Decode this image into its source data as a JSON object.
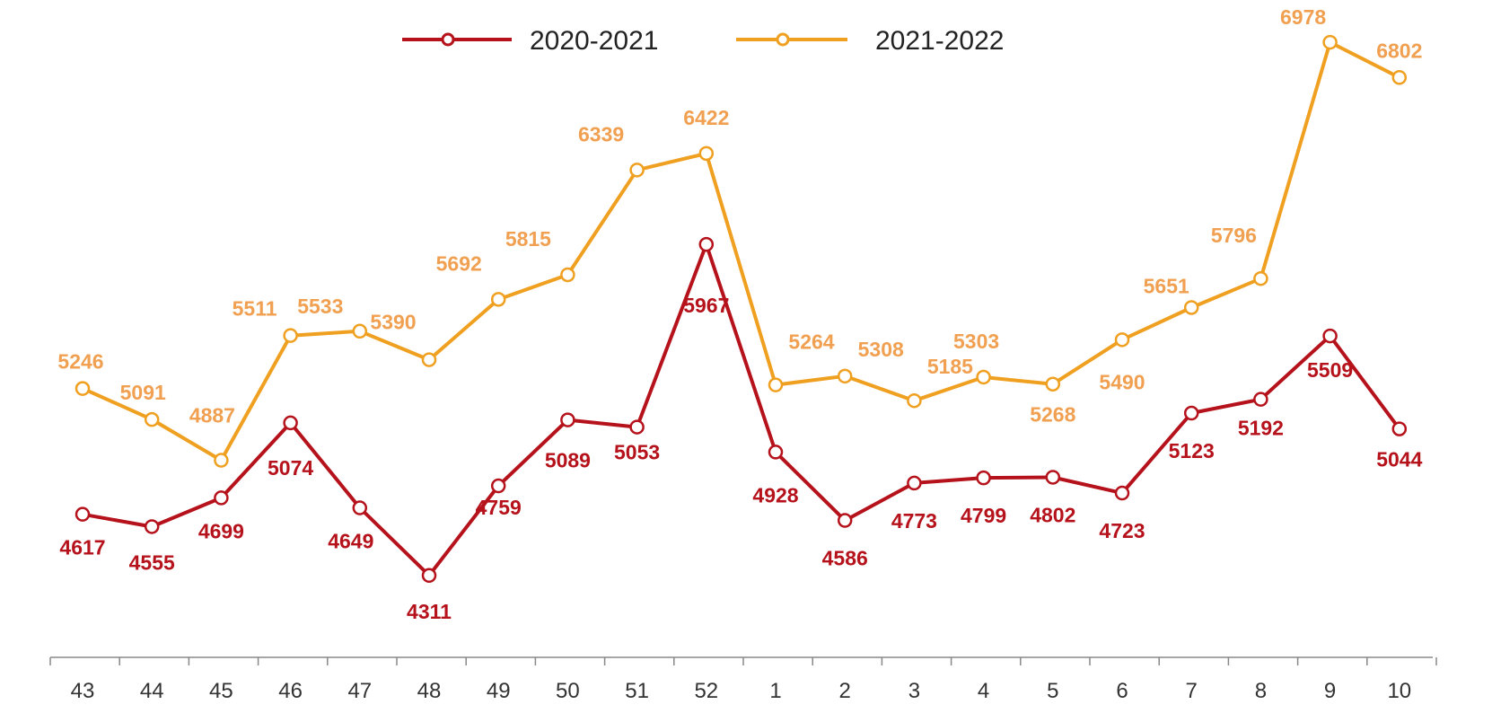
{
  "chart_data": {
    "type": "line",
    "title": "",
    "xlabel": "",
    "ylabel": "",
    "categories": [
      "43",
      "44",
      "45",
      "46",
      "47",
      "48",
      "49",
      "50",
      "51",
      "52",
      "1",
      "2",
      "3",
      "4",
      "5",
      "6",
      "7",
      "8",
      "9",
      "10"
    ],
    "series": [
      {
        "name": "2020-2021",
        "color": "#b5121b",
        "values": [
          4617,
          4555,
          4699,
          5074,
          4649,
          4311,
          4759,
          5089,
          5053,
          5967,
          4928,
          4586,
          4773,
          4799,
          4802,
          4723,
          5123,
          5192,
          5509,
          5044
        ]
      },
      {
        "name": "2021-2022",
        "color": "#f0a020",
        "label_color": "#f0a050",
        "values": [
          5246,
          5091,
          4887,
          5511,
          5533,
          5390,
          5692,
          5815,
          6339,
          6422,
          5264,
          5308,
          5185,
          5303,
          5268,
          5490,
          5651,
          5796,
          6978,
          6802
        ]
      }
    ],
    "ylim": [
      3500,
      7500
    ],
    "grid": false,
    "legend": "top"
  }
}
